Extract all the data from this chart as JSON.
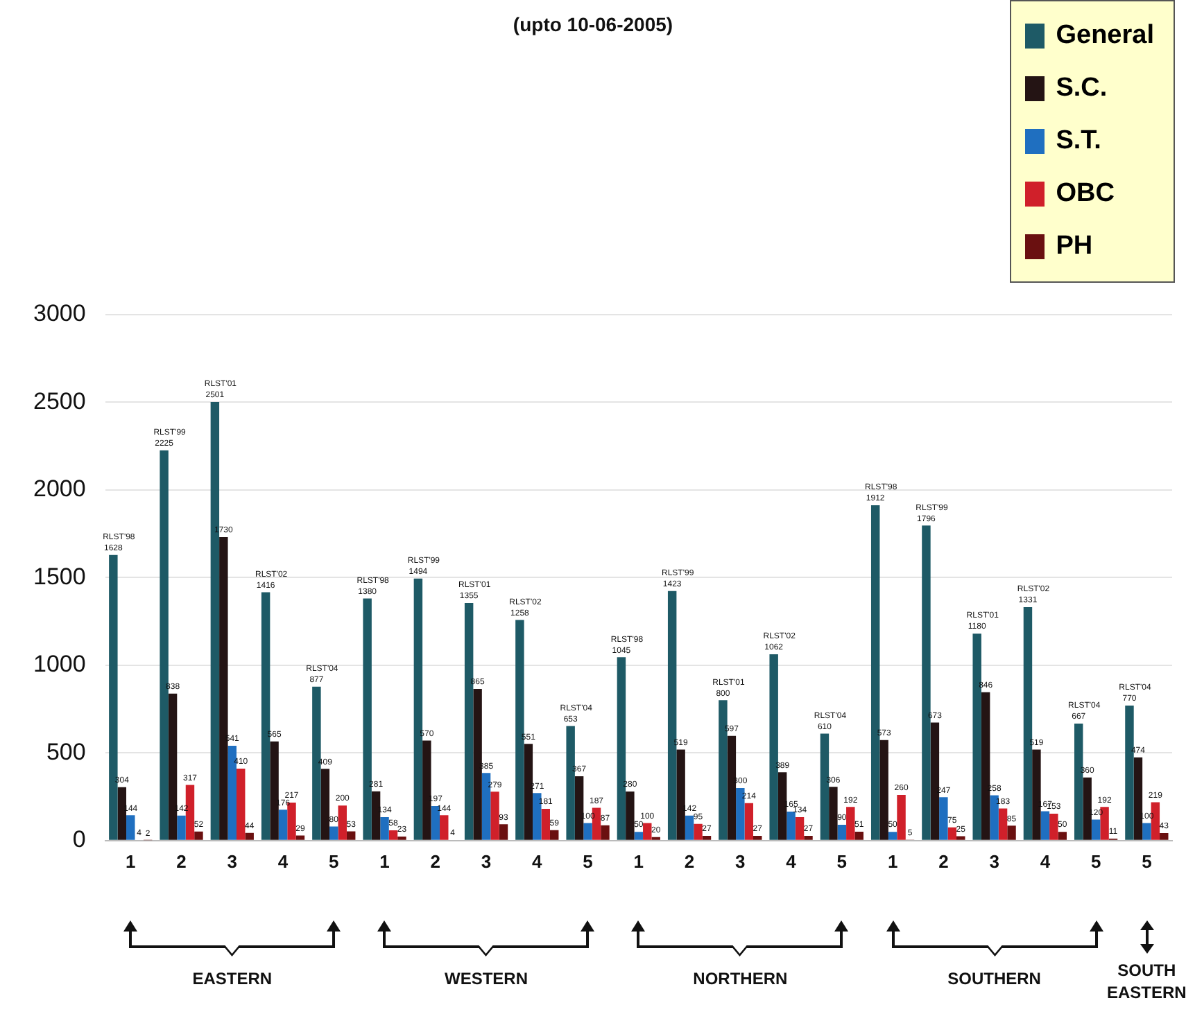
{
  "chart_data": {
    "type": "bar",
    "title": "(upto 10-06-2005)",
    "categories": [
      "1",
      "2",
      "3",
      "4",
      "5",
      "1",
      "2",
      "3",
      "4",
      "5",
      "1",
      "2",
      "3",
      "4",
      "5",
      "1",
      "2",
      "3",
      "4",
      "5",
      "5"
    ],
    "series": [
      {
        "name": "General",
        "color": "#1e5a66",
        "values": [
          1628,
          2225,
          2501,
          1416,
          877,
          1380,
          1494,
          1355,
          1258,
          653,
          1045,
          1423,
          800,
          1062,
          610,
          1912,
          1796,
          1180,
          1331,
          667,
          770
        ],
        "value_labels": [
          "1628",
          "2225",
          "2501",
          "1416",
          "877",
          "1380",
          "1494",
          "1355",
          "1258",
          "653",
          "1045",
          "1423",
          "800",
          "1062",
          "610",
          "1912",
          "1796",
          "1180",
          "1331",
          "667",
          "770"
        ]
      },
      {
        "name": "S.C.",
        "color": "#241414",
        "values": [
          304,
          838,
          1730,
          565,
          409,
          281,
          570,
          865,
          551,
          367,
          280,
          519,
          597,
          389,
          306,
          573,
          673,
          846,
          519,
          360,
          474
        ],
        "value_labels": [
          "304",
          "838",
          "1730",
          "565",
          "409",
          "281",
          "570",
          "865",
          "551",
          "367",
          "280",
          "519",
          "597",
          "389",
          "306",
          "573",
          "673",
          "846",
          "519",
          "360",
          "474"
        ]
      },
      {
        "name": "S.T.",
        "color": "#1f6fc0",
        "values": [
          144,
          142,
          541,
          176,
          80,
          134,
          197,
          385,
          271,
          100,
          50,
          142,
          300,
          165,
          90,
          50,
          247,
          258,
          167,
          120,
          100
        ],
        "value_labels": [
          "144",
          "142",
          "541",
          "176",
          "80",
          "134",
          "197",
          "385",
          "271",
          "100",
          "50",
          "142",
          "300",
          "165",
          "90",
          "50",
          "247",
          "258",
          "167",
          "120",
          "100"
        ]
      },
      {
        "name": "OBC",
        "color": "#d0202a",
        "values": [
          4,
          317,
          410,
          217,
          200,
          58,
          144,
          279,
          181,
          187,
          100,
          95,
          214,
          134,
          192,
          260,
          75,
          183,
          153,
          192,
          219
        ],
        "value_labels": [
          "4",
          "317",
          "410",
          "217",
          "200",
          "58",
          "144",
          "279",
          "181",
          "187",
          "100",
          "95",
          "214",
          "134",
          "192",
          "260",
          "75",
          "183",
          "153",
          "192",
          "219"
        ]
      },
      {
        "name": "PH",
        "color": "#6a1010",
        "values": [
          2,
          52,
          44,
          29,
          53,
          23,
          4,
          93,
          59,
          87,
          20,
          27,
          27,
          27,
          51,
          5,
          25,
          85,
          50,
          11,
          43
        ],
        "value_labels": [
          "2",
          "52",
          "44",
          "29",
          "53",
          "23",
          "4",
          "93",
          "59",
          "87",
          "20",
          "27",
          "27",
          "27",
          "51",
          "5",
          "25",
          "85",
          "50",
          "11",
          "43"
        ]
      }
    ],
    "ylim": [
      0,
      3000
    ],
    "yticks": [
      0,
      500,
      1000,
      1500,
      2000,
      2500,
      3000
    ],
    "grid": "y",
    "legend": "top right",
    "annotations": [
      "RLST'98",
      "RLST'99",
      "RLST'01",
      "RLST'02",
      "RLST'04",
      "RLST'98",
      "RLST'99",
      "RLST'01",
      "RLST'02",
      "RLST'04",
      "RLST'98",
      "RLST'99",
      "RLST'01",
      "RLST'02",
      "RLST'04",
      "RLST'98",
      "RLST'99",
      "RLST'01",
      "RLST'02",
      "RLST'04",
      "RLST'04",
      "EASTERN",
      "WESTERN",
      "NORTHERN",
      "SOUTHERN",
      "SOUTH EASTERN"
    ]
  }
}
